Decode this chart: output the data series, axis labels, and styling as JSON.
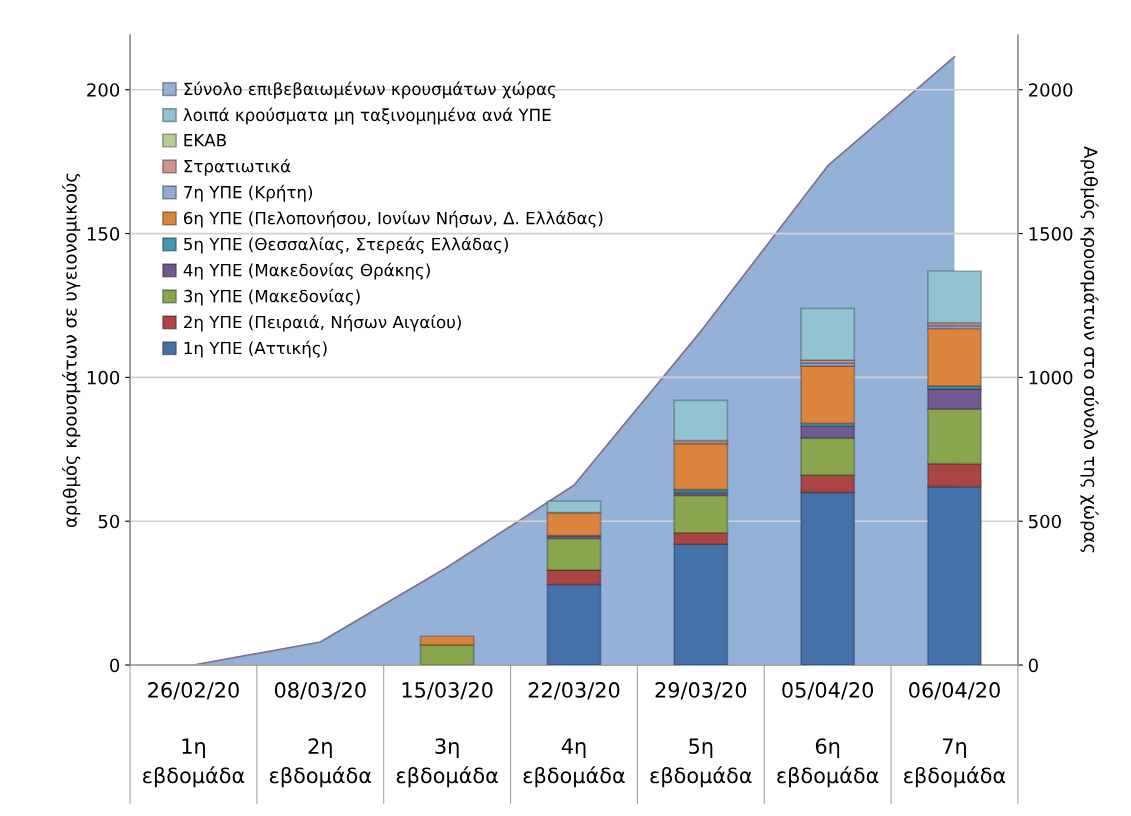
{
  "chart_data": {
    "type": "bar",
    "stacked": true,
    "categories": [
      "26/02/20\n\n1η\nεβδομάδα",
      "08/03/20\n\n2η\nεβδομάδα",
      "15/03/20\n\n3η\nεβδομάδα",
      "22/03/20\n\n4η\nεβδομάδα",
      "29/03/20\n\n5η\nεβδομάδα",
      "05/04/20\n\n6η\nεβδομάδα",
      "06/04/20\n\n7η\nεβδομάδα"
    ],
    "ylabel": "αριθμός κρουσμάτων σε υγειονομικούς",
    "y2label": "Αριθμός κρουσμάτων στο σύνολο της χώρας",
    "ylim": [
      0,
      219
    ],
    "yticks": [
      0,
      50,
      100,
      150,
      200
    ],
    "y2lim": [
      0,
      2190
    ],
    "y2ticks": [
      0,
      500,
      1000,
      1500,
      2000
    ],
    "grid": "y",
    "legend": "top left",
    "series": [
      {
        "name": "Σύνολο επιβεβαιωμένων κρουσμάτων χώρας",
        "type": "area",
        "axis": "y2",
        "color": "#94b2d8",
        "values": [
          0,
          80,
          340,
          625,
          1160,
          1735,
          2115
        ]
      },
      {
        "name": "1η ΥΠΕ (Αττικής)",
        "color": "#4471a8",
        "values": [
          null,
          null,
          null,
          28,
          42,
          60,
          62
        ]
      },
      {
        "name": "2η ΥΠΕ (Πειραιά, Νήσων Αιγαίου)",
        "color": "#aa4543",
        "values": [
          null,
          null,
          null,
          5,
          4,
          6,
          8
        ]
      },
      {
        "name": "3η ΥΠΕ (Μακεδονίας)",
        "color": "#89a54e",
        "values": [
          null,
          null,
          7,
          11,
          13,
          13,
          19
        ]
      },
      {
        "name": "4η ΥΠΕ (Μακεδονίας Θράκης)",
        "color": "#71588f",
        "values": [
          null,
          null,
          null,
          1,
          1,
          4,
          7
        ]
      },
      {
        "name": "5η ΥΠΕ (Θεσσαλίας, Στερεάς Ελλάδας)",
        "color": "#4198af",
        "values": [
          null,
          null,
          null,
          null,
          1,
          1,
          1
        ]
      },
      {
        "name": "6η ΥΠΕ (Πελοπονήσου, Ιονίων Νήσων, Δ. Ελλάδας)",
        "color": "#db843d",
        "values": [
          null,
          null,
          3,
          8,
          16,
          20,
          20
        ]
      },
      {
        "name": "7η ΥΠΕ (Κρήτη)",
        "color": "#93a9cf",
        "values": [
          null,
          null,
          null,
          null,
          null,
          1,
          1
        ]
      },
      {
        "name": "Στρατιωτικά",
        "color": "#d19392",
        "values": [
          null,
          null,
          null,
          null,
          1,
          1,
          1
        ]
      },
      {
        "name": "ΕΚΑΒ",
        "color": "#b9cd96",
        "values": [
          null,
          null,
          null,
          null,
          null,
          null,
          null
        ]
      },
      {
        "name": "λοιπά κρούσματα μη ταξινομημένα ανά ΥΠΕ",
        "color": "#92c3d0",
        "values": [
          null,
          null,
          null,
          4,
          14,
          18,
          18
        ]
      }
    ]
  }
}
